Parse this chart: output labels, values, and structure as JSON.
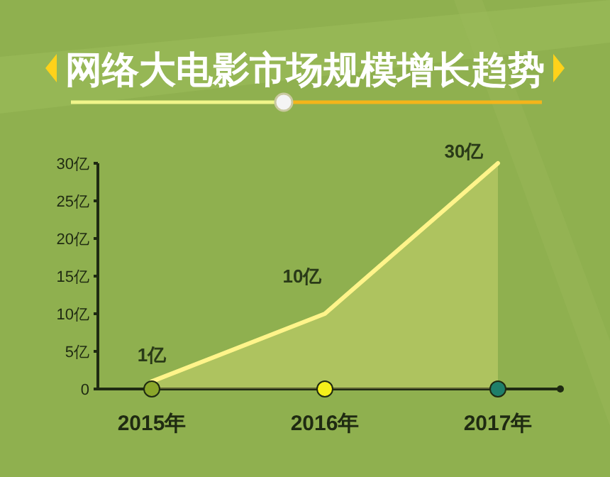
{
  "chart_data": {
    "type": "area",
    "title": "网络大电影市场规模增长趋势",
    "categories": [
      "2015年",
      "2016年",
      "2017年"
    ],
    "values": [
      1,
      10,
      30
    ],
    "color": "#fff48a",
    "value_labels": [
      "1亿",
      "10亿",
      "30亿"
    ],
    "ylim": [
      0,
      30
    ],
    "yticks": [
      0,
      {
        "value": 5,
        "label": "5亿"
      },
      {
        "value": 10,
        "label": "10亿"
      },
      {
        "value": 15,
        "label": "15亿"
      },
      {
        "value": 20,
        "label": "20亿"
      },
      {
        "value": 25,
        "label": "25亿"
      },
      {
        "value": 30,
        "label": "30亿"
      }
    ]
  }
}
